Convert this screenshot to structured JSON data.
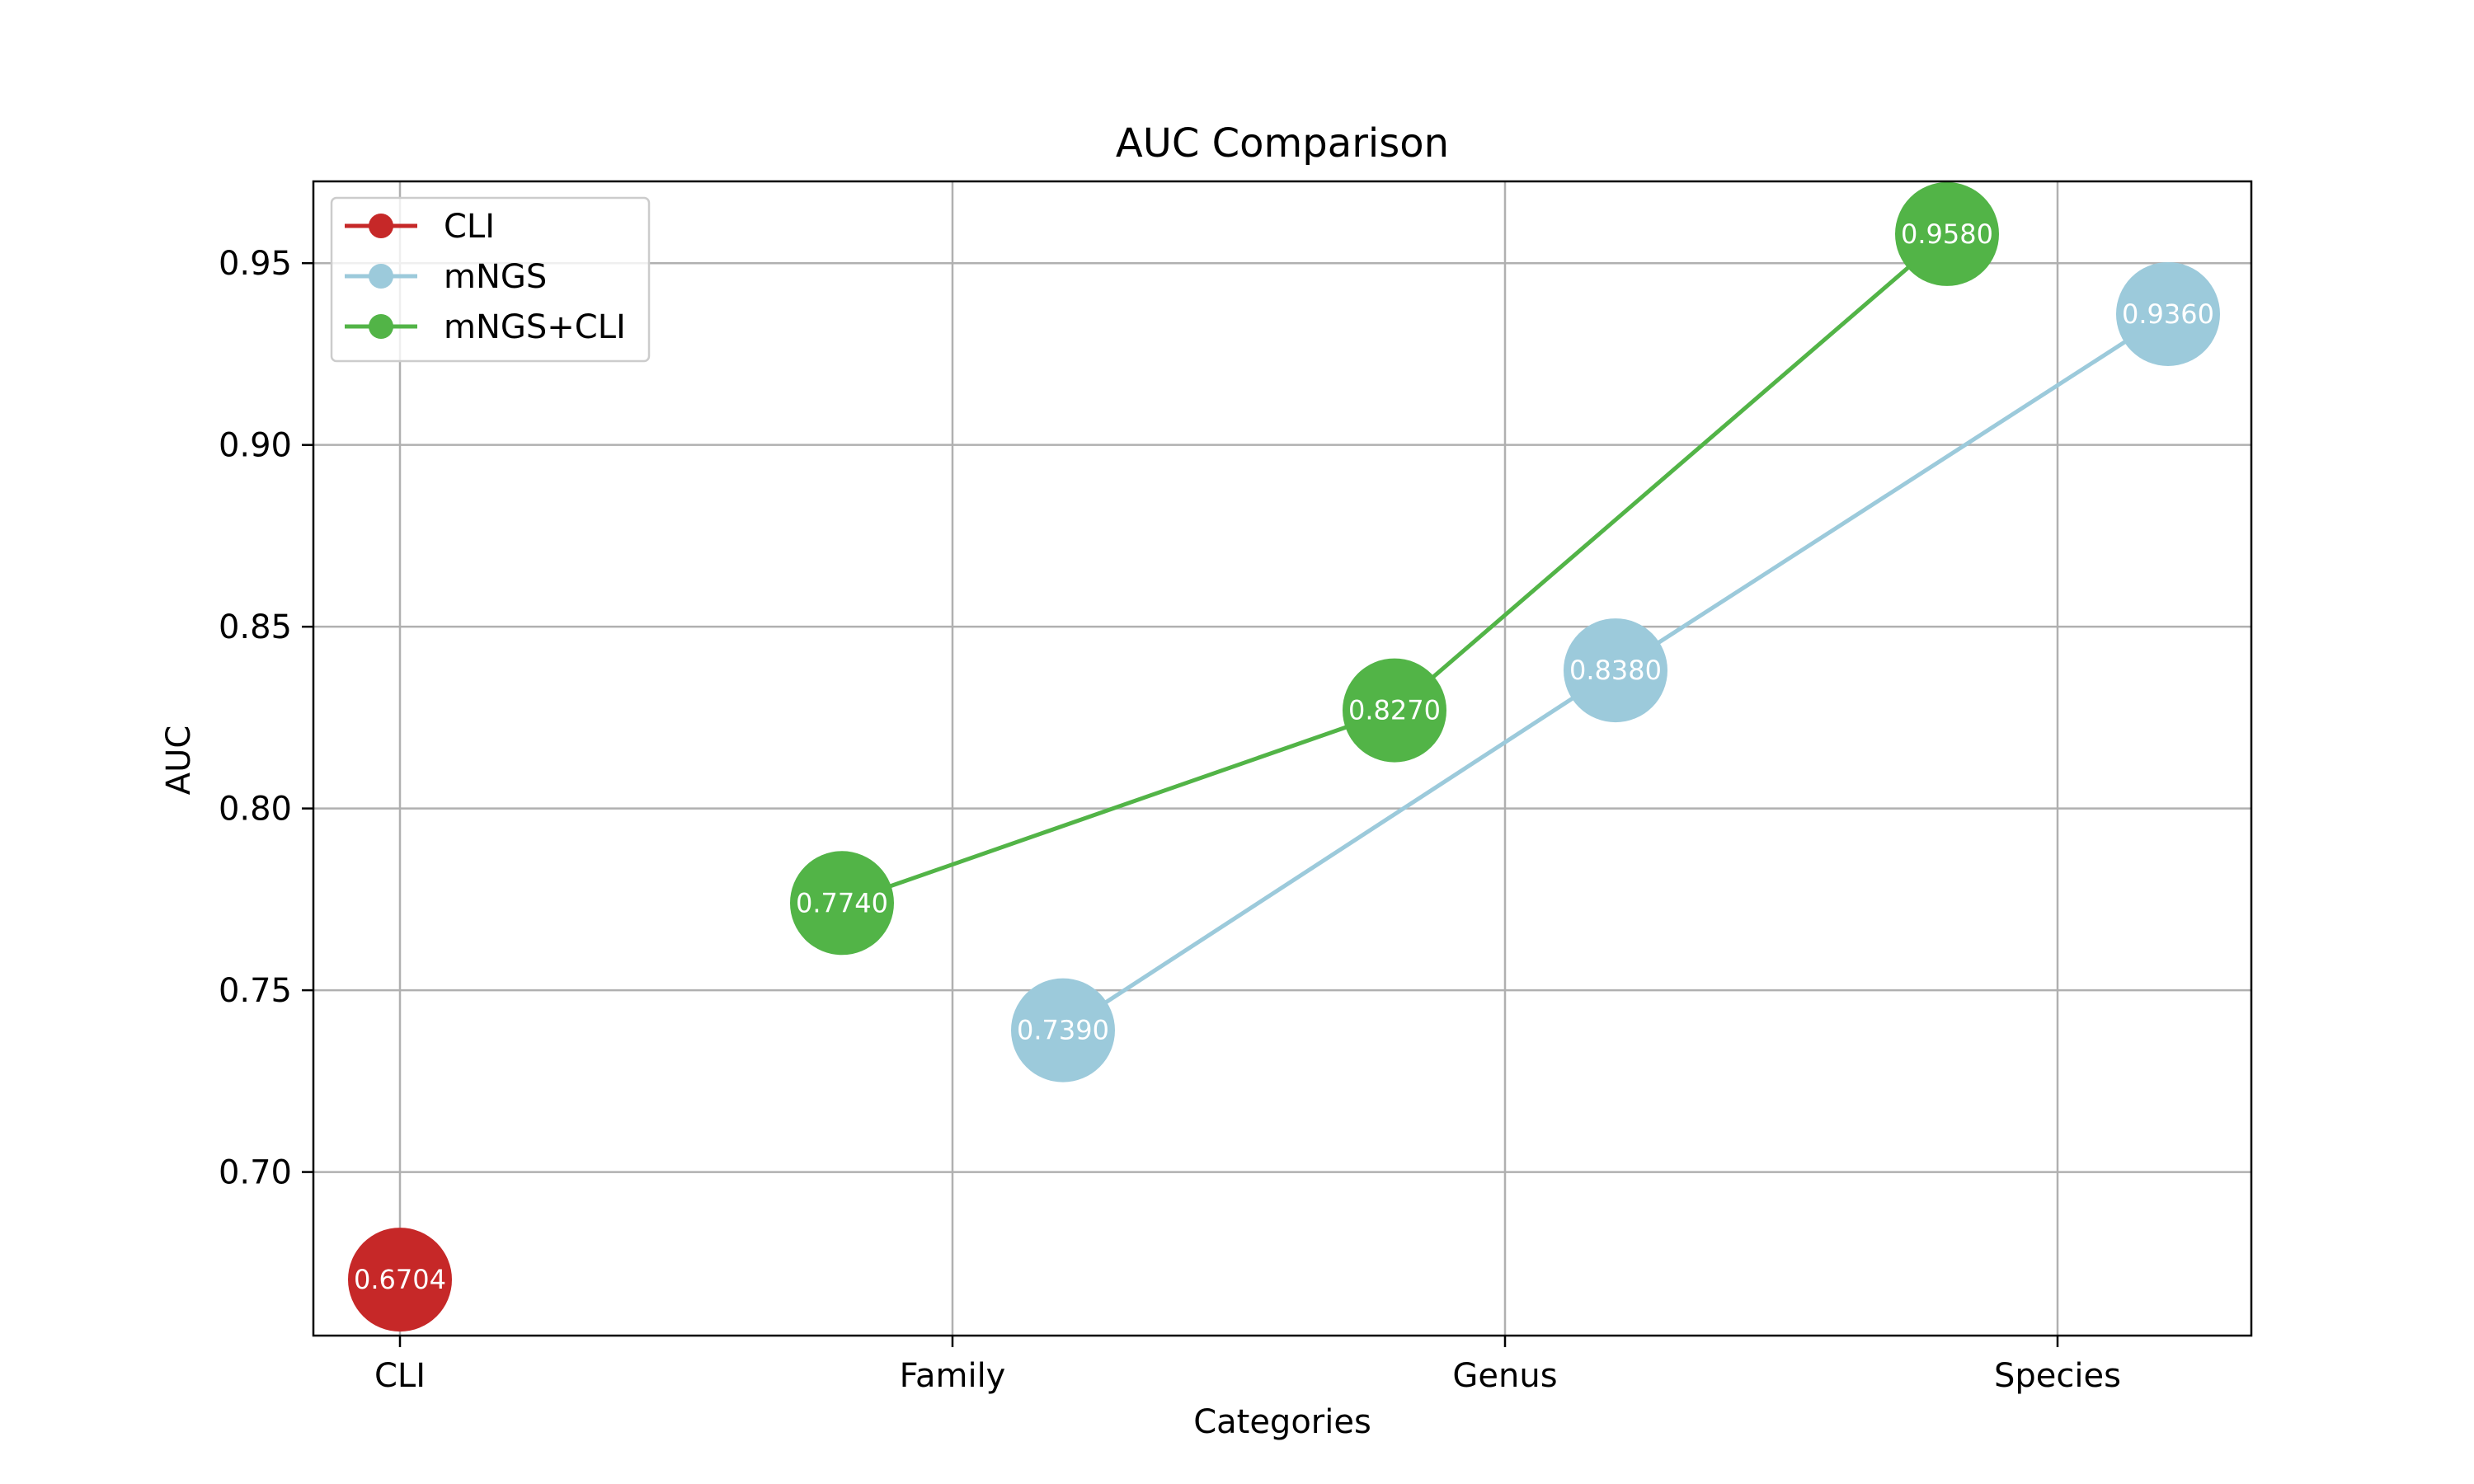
{
  "chart_data": {
    "type": "line",
    "title": "AUC Comparison",
    "xlabel": "Categories",
    "ylabel": "AUC",
    "categories": [
      "CLI",
      "Family",
      "Genus",
      "Species"
    ],
    "ylim": [
      0.655,
      0.9725
    ],
    "yticks": [
      0.7,
      0.75,
      0.8,
      0.85,
      0.9,
      0.95
    ],
    "ytick_labels": [
      "0.70",
      "0.75",
      "0.80",
      "0.85",
      "0.90",
      "0.95"
    ],
    "grid": true,
    "legend_position": "top-left",
    "series": [
      {
        "name": "CLI",
        "color": "#c62828",
        "category_offset": 0,
        "points": [
          {
            "category": "CLI",
            "value": 0.6704,
            "label": "0.6704"
          }
        ]
      },
      {
        "name": "mNGS",
        "color": "#9ccadb",
        "category_offset": 0.2,
        "points": [
          {
            "category": "Family",
            "value": 0.739,
            "label": "0.7390"
          },
          {
            "category": "Genus",
            "value": 0.838,
            "label": "0.8380"
          },
          {
            "category": "Species",
            "value": 0.936,
            "label": "0.9360"
          }
        ]
      },
      {
        "name": "mNGS+CLI",
        "color": "#52b447",
        "category_offset": -0.2,
        "points": [
          {
            "category": "Family",
            "value": 0.774,
            "label": "0.7740"
          },
          {
            "category": "Genus",
            "value": 0.827,
            "label": "0.8270"
          },
          {
            "category": "Species",
            "value": 0.958,
            "label": "0.9580"
          }
        ]
      }
    ]
  }
}
